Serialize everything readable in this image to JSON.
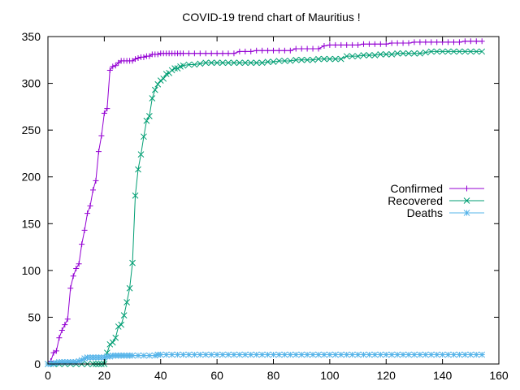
{
  "chart_data": {
    "type": "line",
    "title": "COVID-19 trend chart of Mauritius !",
    "xlabel": "",
    "ylabel": "",
    "xlim": [
      0,
      160
    ],
    "ylim": [
      0,
      350
    ],
    "xticks": [
      0,
      20,
      40,
      60,
      80,
      100,
      120,
      140,
      160
    ],
    "yticks": [
      0,
      50,
      100,
      150,
      200,
      250,
      300,
      350
    ],
    "grid": false,
    "legend_position": "right",
    "series": [
      {
        "name": "Confirmed",
        "color": "#9400d3",
        "marker": "plus",
        "points": [
          [
            0,
            0
          ],
          [
            1,
            3
          ],
          [
            2,
            12
          ],
          [
            3,
            14
          ],
          [
            4,
            28
          ],
          [
            5,
            36
          ],
          [
            6,
            42
          ],
          [
            7,
            48
          ],
          [
            8,
            81
          ],
          [
            9,
            94
          ],
          [
            10,
            102
          ],
          [
            11,
            107
          ],
          [
            12,
            128
          ],
          [
            13,
            143
          ],
          [
            14,
            161
          ],
          [
            15,
            169
          ],
          [
            16,
            186
          ],
          [
            17,
            196
          ],
          [
            18,
            227
          ],
          [
            19,
            244
          ],
          [
            20,
            268
          ],
          [
            21,
            273
          ],
          [
            22,
            314
          ],
          [
            23,
            318
          ],
          [
            24,
            319
          ],
          [
            25,
            322
          ],
          [
            26,
            324
          ],
          [
            27,
            324
          ],
          [
            28,
            324
          ],
          [
            29,
            324
          ],
          [
            30,
            324
          ],
          [
            31,
            326
          ],
          [
            32,
            327
          ],
          [
            33,
            328
          ],
          [
            34,
            328
          ],
          [
            35,
            329
          ],
          [
            36,
            329
          ],
          [
            37,
            331
          ],
          [
            38,
            331
          ],
          [
            39,
            331
          ],
          [
            40,
            332
          ],
          [
            41,
            332
          ],
          [
            42,
            332
          ],
          [
            43,
            332
          ],
          [
            44,
            332
          ],
          [
            45,
            332
          ],
          [
            46,
            332
          ],
          [
            47,
            332
          ],
          [
            48,
            332
          ],
          [
            50,
            332
          ],
          [
            52,
            332
          ],
          [
            54,
            332
          ],
          [
            56,
            332
          ],
          [
            58,
            332
          ],
          [
            60,
            332
          ],
          [
            62,
            332
          ],
          [
            64,
            332
          ],
          [
            66,
            332
          ],
          [
            68,
            334
          ],
          [
            70,
            334
          ],
          [
            72,
            334
          ],
          [
            74,
            335
          ],
          [
            76,
            335
          ],
          [
            78,
            335
          ],
          [
            80,
            335
          ],
          [
            82,
            335
          ],
          [
            84,
            335
          ],
          [
            86,
            335
          ],
          [
            88,
            337
          ],
          [
            90,
            337
          ],
          [
            92,
            337
          ],
          [
            94,
            337
          ],
          [
            96,
            337
          ],
          [
            98,
            340
          ],
          [
            100,
            341
          ],
          [
            102,
            341
          ],
          [
            104,
            341
          ],
          [
            106,
            341
          ],
          [
            108,
            341
          ],
          [
            110,
            341
          ],
          [
            112,
            342
          ],
          [
            114,
            342
          ],
          [
            116,
            342
          ],
          [
            118,
            342
          ],
          [
            120,
            342
          ],
          [
            122,
            343
          ],
          [
            124,
            343
          ],
          [
            126,
            343
          ],
          [
            128,
            343
          ],
          [
            130,
            344
          ],
          [
            132,
            344
          ],
          [
            134,
            344
          ],
          [
            136,
            344
          ],
          [
            138,
            344
          ],
          [
            140,
            344
          ],
          [
            142,
            344
          ],
          [
            144,
            344
          ],
          [
            146,
            344
          ],
          [
            148,
            345
          ],
          [
            150,
            345
          ],
          [
            152,
            345
          ],
          [
            154,
            345
          ]
        ]
      },
      {
        "name": "Recovered",
        "color": "#009e73",
        "marker": "cross",
        "points": [
          [
            0,
            0
          ],
          [
            2,
            0
          ],
          [
            4,
            0
          ],
          [
            6,
            0
          ],
          [
            8,
            0
          ],
          [
            10,
            0
          ],
          [
            12,
            0
          ],
          [
            14,
            0
          ],
          [
            16,
            0
          ],
          [
            17,
            0
          ],
          [
            18,
            0
          ],
          [
            19,
            0
          ],
          [
            20,
            0
          ],
          [
            21,
            12
          ],
          [
            22,
            21
          ],
          [
            23,
            23
          ],
          [
            24,
            28
          ],
          [
            25,
            40
          ],
          [
            26,
            42
          ],
          [
            27,
            52
          ],
          [
            28,
            66
          ],
          [
            29,
            81
          ],
          [
            30,
            108
          ],
          [
            31,
            180
          ],
          [
            32,
            208
          ],
          [
            33,
            224
          ],
          [
            34,
            243
          ],
          [
            35,
            260
          ],
          [
            36,
            265
          ],
          [
            37,
            284
          ],
          [
            38,
            293
          ],
          [
            39,
            299
          ],
          [
            40,
            303
          ],
          [
            41,
            305
          ],
          [
            42,
            310
          ],
          [
            43,
            311
          ],
          [
            44,
            314
          ],
          [
            45,
            316
          ],
          [
            46,
            316
          ],
          [
            47,
            318
          ],
          [
            48,
            319
          ],
          [
            50,
            320
          ],
          [
            52,
            320
          ],
          [
            54,
            321
          ],
          [
            56,
            322
          ],
          [
            58,
            322
          ],
          [
            60,
            322
          ],
          [
            62,
            322
          ],
          [
            64,
            322
          ],
          [
            66,
            322
          ],
          [
            68,
            322
          ],
          [
            70,
            322
          ],
          [
            72,
            322
          ],
          [
            74,
            322
          ],
          [
            76,
            322
          ],
          [
            78,
            323
          ],
          [
            80,
            323
          ],
          [
            82,
            324
          ],
          [
            84,
            324
          ],
          [
            86,
            324
          ],
          [
            88,
            325
          ],
          [
            90,
            325
          ],
          [
            92,
            325
          ],
          [
            94,
            325
          ],
          [
            96,
            326
          ],
          [
            98,
            326
          ],
          [
            100,
            326
          ],
          [
            102,
            326
          ],
          [
            104,
            326
          ],
          [
            106,
            329
          ],
          [
            108,
            329
          ],
          [
            110,
            329
          ],
          [
            112,
            330
          ],
          [
            114,
            330
          ],
          [
            116,
            330
          ],
          [
            118,
            331
          ],
          [
            120,
            331
          ],
          [
            122,
            331
          ],
          [
            124,
            332
          ],
          [
            126,
            332
          ],
          [
            128,
            332
          ],
          [
            130,
            332
          ],
          [
            132,
            332
          ],
          [
            134,
            333
          ],
          [
            136,
            334
          ],
          [
            138,
            334
          ],
          [
            140,
            334
          ],
          [
            142,
            334
          ],
          [
            144,
            334
          ],
          [
            146,
            334
          ],
          [
            148,
            334
          ],
          [
            150,
            334
          ],
          [
            152,
            334
          ],
          [
            154,
            334
          ]
        ]
      },
      {
        "name": "Deaths",
        "color": "#56b4e9",
        "marker": "star",
        "points": [
          [
            0,
            0
          ],
          [
            1,
            0
          ],
          [
            2,
            1
          ],
          [
            3,
            1
          ],
          [
            4,
            2
          ],
          [
            5,
            2
          ],
          [
            6,
            2
          ],
          [
            7,
            2
          ],
          [
            8,
            2
          ],
          [
            9,
            2
          ],
          [
            10,
            2
          ],
          [
            11,
            3
          ],
          [
            12,
            4
          ],
          [
            13,
            6
          ],
          [
            14,
            7
          ],
          [
            15,
            7
          ],
          [
            16,
            7
          ],
          [
            17,
            7
          ],
          [
            18,
            7
          ],
          [
            19,
            7
          ],
          [
            20,
            7
          ],
          [
            21,
            8
          ],
          [
            22,
            8
          ],
          [
            23,
            9
          ],
          [
            24,
            9
          ],
          [
            25,
            9
          ],
          [
            26,
            9
          ],
          [
            27,
            9
          ],
          [
            28,
            9
          ],
          [
            29,
            9
          ],
          [
            30,
            9
          ],
          [
            32,
            9
          ],
          [
            34,
            9
          ],
          [
            36,
            9
          ],
          [
            38,
            9
          ],
          [
            39,
            10
          ],
          [
            40,
            10
          ],
          [
            42,
            10
          ],
          [
            44,
            10
          ],
          [
            46,
            10
          ],
          [
            48,
            10
          ],
          [
            50,
            10
          ],
          [
            52,
            10
          ],
          [
            54,
            10
          ],
          [
            56,
            10
          ],
          [
            58,
            10
          ],
          [
            60,
            10
          ],
          [
            62,
            10
          ],
          [
            64,
            10
          ],
          [
            66,
            10
          ],
          [
            68,
            10
          ],
          [
            70,
            10
          ],
          [
            72,
            10
          ],
          [
            74,
            10
          ],
          [
            76,
            10
          ],
          [
            78,
            10
          ],
          [
            80,
            10
          ],
          [
            82,
            10
          ],
          [
            84,
            10
          ],
          [
            86,
            10
          ],
          [
            88,
            10
          ],
          [
            90,
            10
          ],
          [
            92,
            10
          ],
          [
            94,
            10
          ],
          [
            96,
            10
          ],
          [
            98,
            10
          ],
          [
            100,
            10
          ],
          [
            102,
            10
          ],
          [
            104,
            10
          ],
          [
            106,
            10
          ],
          [
            108,
            10
          ],
          [
            110,
            10
          ],
          [
            112,
            10
          ],
          [
            114,
            10
          ],
          [
            116,
            10
          ],
          [
            118,
            10
          ],
          [
            120,
            10
          ],
          [
            122,
            10
          ],
          [
            124,
            10
          ],
          [
            126,
            10
          ],
          [
            128,
            10
          ],
          [
            130,
            10
          ],
          [
            132,
            10
          ],
          [
            134,
            10
          ],
          [
            136,
            10
          ],
          [
            138,
            10
          ],
          [
            140,
            10
          ],
          [
            142,
            10
          ],
          [
            144,
            10
          ],
          [
            146,
            10
          ],
          [
            148,
            10
          ],
          [
            150,
            10
          ],
          [
            152,
            10
          ],
          [
            154,
            10
          ]
        ]
      }
    ]
  }
}
